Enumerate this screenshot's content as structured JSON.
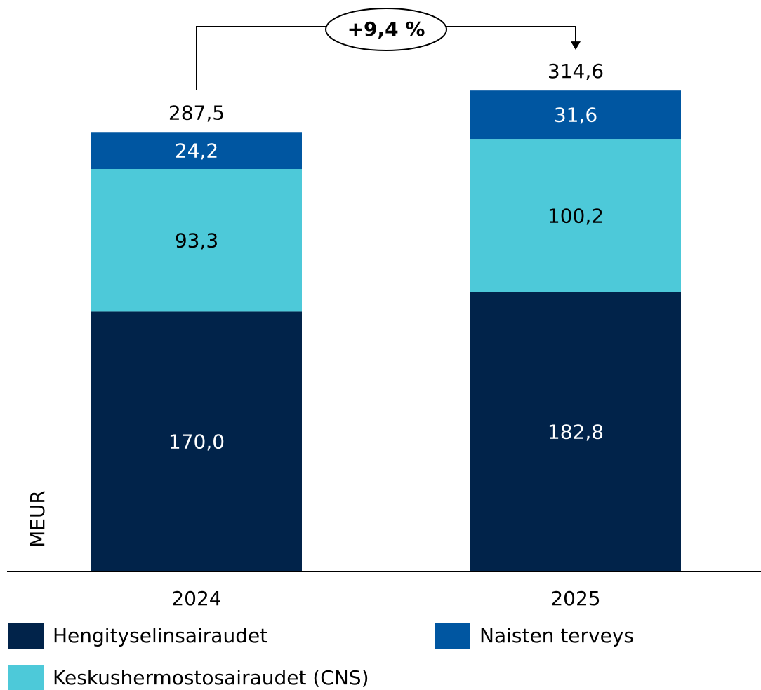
{
  "chart_data": {
    "type": "stacked_bar",
    "categories": [
      "2024",
      "2025"
    ],
    "series": [
      {
        "name": "Hengityselinsairaudet",
        "color": "#01234a",
        "values": [
          170.0,
          182.8
        ],
        "value_labels": [
          "170,0",
          "182,8"
        ]
      },
      {
        "name": "Keskushermostosairaudet (CNS)",
        "color": "#4dc9d9",
        "values": [
          93.3,
          100.2
        ],
        "value_labels": [
          "93,3",
          "100,2"
        ]
      },
      {
        "name": "Naisten terveys",
        "color": "#0056a1",
        "values": [
          24.2,
          31.6
        ],
        "value_labels": [
          "24,2",
          "31,6"
        ]
      }
    ],
    "totals": [
      287.5,
      314.6
    ],
    "total_labels": [
      "287,5",
      "314,6"
    ],
    "annotation": "+9,4 %",
    "ylabel": "MEUR",
    "ylim": [
      0,
      350
    ]
  }
}
